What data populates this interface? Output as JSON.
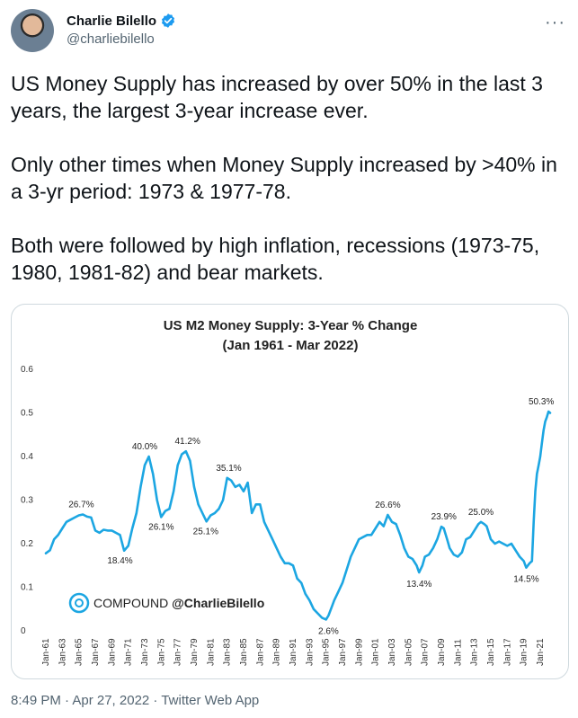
{
  "tweet": {
    "author_name": "Charlie Bilello",
    "handle": "@charliebilello",
    "paragraphs": [
      "US Money Supply has increased by over 50% in the last 3 years, the largest 3-year increase ever.",
      "Only other times when Money Supply increased by >40% in a 3-yr period: 1973 & 1977-78.",
      "Both were followed by high inflation, recessions (1973-75, 1980, 1981-82) and bear markets."
    ],
    "footer": "8:49 PM · Apr 27, 2022 · Twitter Web App",
    "more_icon": "more-icon",
    "verified_icon": "verified-badge-icon"
  },
  "chart_data": {
    "type": "line",
    "title_line1": "US M2 Money Supply: 3-Year % Change",
    "title_line2": "(Jan 1961 - Mar 2022)",
    "color": "#1ca6e2",
    "ylim": [
      0,
      0.6
    ],
    "yticks": [
      "0",
      "0.1",
      "0.2",
      "0.3",
      "0.4",
      "0.5",
      "0.6"
    ],
    "xlim": [
      1961,
      2022.2
    ],
    "xticks": [
      "Jan-61",
      "Jan-63",
      "Jan-65",
      "Jan-67",
      "Jan-69",
      "Jan-71",
      "Jan-73",
      "Jan-75",
      "Jan-77",
      "Jan-79",
      "Jan-81",
      "Jan-83",
      "Jan-85",
      "Jan-87",
      "Jan-89",
      "Jan-91",
      "Jan-93",
      "Jan-95",
      "Jan-97",
      "Jan-99",
      "Jan-01",
      "Jan-03",
      "Jan-05",
      "Jan-07",
      "Jan-09",
      "Jan-11",
      "Jan-13",
      "Jan-15",
      "Jan-17",
      "Jan-19",
      "Jan-21"
    ],
    "brand_prefix": "COMPOUND ",
    "brand_handle": "@CharlieBilello",
    "annotations": [
      {
        "text": "26.7%",
        "x": 1965.3,
        "y": 0.267
      },
      {
        "text": "18.4%",
        "x": 1970.0,
        "y": 0.184
      },
      {
        "text": "40.0%",
        "x": 1973.0,
        "y": 0.4
      },
      {
        "text": "26.1%",
        "x": 1975.0,
        "y": 0.261
      },
      {
        "text": "41.2%",
        "x": 1978.2,
        "y": 0.412
      },
      {
        "text": "25.1%",
        "x": 1980.4,
        "y": 0.251
      },
      {
        "text": "35.1%",
        "x": 1983.2,
        "y": 0.351
      },
      {
        "text": "2.6%",
        "x": 1995.3,
        "y": 0.026
      },
      {
        "text": "26.6%",
        "x": 2002.5,
        "y": 0.266
      },
      {
        "text": "13.4%",
        "x": 2006.3,
        "y": 0.134
      },
      {
        "text": "23.9%",
        "x": 2009.3,
        "y": 0.239
      },
      {
        "text": "25.0%",
        "x": 2013.8,
        "y": 0.25
      },
      {
        "text": "14.5%",
        "x": 2019.3,
        "y": 0.145
      },
      {
        "text": "50.3%",
        "x": 2022.0,
        "y": 0.503
      }
    ],
    "series": [
      {
        "x": [
          1961.0,
          1961.5,
          1962.0,
          1962.5,
          1963.0,
          1963.5,
          1964.0,
          1964.5,
          1965.0,
          1965.5,
          1966.0,
          1966.5,
          1967.0,
          1967.5,
          1968.0,
          1968.5,
          1969.0,
          1969.5,
          1970.0,
          1970.5,
          1971.0,
          1971.5,
          1972.0,
          1972.5,
          1973.0,
          1973.5,
          1974.0,
          1974.5,
          1975.0,
          1975.5,
          1976.0,
          1976.5,
          1977.0,
          1977.5,
          1978.0,
          1978.5,
          1979.0,
          1979.5,
          1980.0,
          1980.5,
          1981.0,
          1981.5,
          1982.0,
          1982.5,
          1983.0,
          1983.5,
          1984.0,
          1984.5,
          1985.0,
          1985.5,
          1986.0,
          1986.5,
          1987.0,
          1987.5,
          1988.0,
          1988.5,
          1989.0,
          1989.5,
          1990.0,
          1990.5,
          1991.0,
          1991.5,
          1992.0,
          1992.5,
          1993.0,
          1993.5,
          1994.0,
          1994.5,
          1995.0,
          1995.3,
          1995.7,
          1996.0,
          1996.5,
          1997.0,
          1997.5,
          1998.0,
          1998.5,
          1999.0,
          1999.5,
          2000.0,
          2000.5,
          2001.0,
          2001.5,
          2002.0,
          2002.5,
          2003.0,
          2003.5,
          2004.0,
          2004.5,
          2005.0,
          2005.5,
          2006.0,
          2006.3,
          2006.7,
          2007.0,
          2007.5,
          2008.0,
          2008.5,
          2009.0,
          2009.3,
          2009.7,
          2010.0,
          2010.5,
          2011.0,
          2011.5,
          2012.0,
          2012.5,
          2013.0,
          2013.5,
          2013.8,
          2014.2,
          2014.5,
          2015.0,
          2015.5,
          2016.0,
          2016.5,
          2017.0,
          2017.5,
          2018.0,
          2018.5,
          2019.0,
          2019.3,
          2019.7,
          2020.0,
          2020.2,
          2020.4,
          2020.6,
          2020.8,
          2021.0,
          2021.2,
          2021.4,
          2021.6,
          2021.8,
          2022.0,
          2022.2
        ],
        "y": [
          0.178,
          0.185,
          0.21,
          0.22,
          0.235,
          0.25,
          0.255,
          0.26,
          0.265,
          0.267,
          0.262,
          0.26,
          0.23,
          0.225,
          0.232,
          0.23,
          0.23,
          0.225,
          0.22,
          0.184,
          0.195,
          0.235,
          0.27,
          0.33,
          0.38,
          0.4,
          0.36,
          0.3,
          0.261,
          0.275,
          0.28,
          0.32,
          0.38,
          0.405,
          0.412,
          0.39,
          0.33,
          0.29,
          0.27,
          0.251,
          0.265,
          0.27,
          0.28,
          0.3,
          0.351,
          0.345,
          0.33,
          0.335,
          0.32,
          0.34,
          0.27,
          0.29,
          0.29,
          0.25,
          0.23,
          0.21,
          0.19,
          0.17,
          0.155,
          0.155,
          0.15,
          0.12,
          0.11,
          0.085,
          0.07,
          0.05,
          0.04,
          0.03,
          0.026,
          0.035,
          0.055,
          0.07,
          0.09,
          0.11,
          0.14,
          0.17,
          0.19,
          0.21,
          0.215,
          0.22,
          0.22,
          0.235,
          0.25,
          0.24,
          0.266,
          0.25,
          0.245,
          0.22,
          0.19,
          0.17,
          0.165,
          0.15,
          0.134,
          0.15,
          0.17,
          0.175,
          0.19,
          0.21,
          0.239,
          0.235,
          0.21,
          0.19,
          0.175,
          0.17,
          0.18,
          0.21,
          0.215,
          0.23,
          0.245,
          0.25,
          0.245,
          0.24,
          0.21,
          0.2,
          0.205,
          0.2,
          0.195,
          0.2,
          0.185,
          0.17,
          0.16,
          0.145,
          0.155,
          0.16,
          0.25,
          0.32,
          0.36,
          0.38,
          0.4,
          0.43,
          0.46,
          0.48,
          0.49,
          0.503,
          0.5
        ]
      }
    ]
  }
}
